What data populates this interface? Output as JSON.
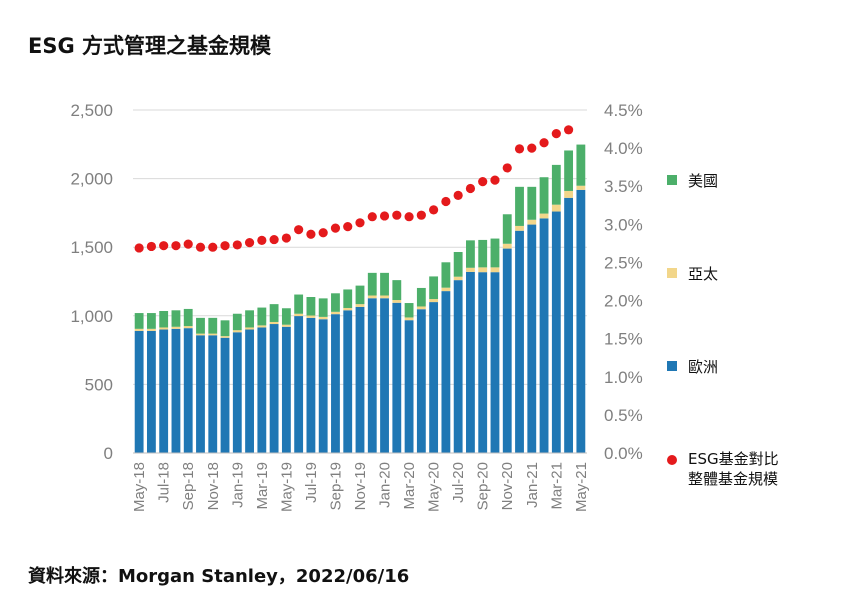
{
  "title": "ESG 方式管理之基金規模",
  "source": "資料來源：Morgan Stanley，2022/06/16",
  "chart_data": {
    "type": "bar",
    "stacked": true,
    "y_left": {
      "min": 0,
      "max": 2500,
      "ticks": [
        "0",
        "500",
        "1,000",
        "1,500",
        "2,000",
        "2,500"
      ]
    },
    "y_right": {
      "min": 0,
      "max": 4.5,
      "ticks": [
        "0.0%",
        "0.5%",
        "1.0%",
        "1.5%",
        "2.0%",
        "2.5%",
        "3.0%",
        "3.5%",
        "4.0%",
        "4.5%"
      ]
    },
    "grid": true,
    "legend_position": "right",
    "categories": [
      "May-18",
      "Jun-18",
      "Jul-18",
      "Aug-18",
      "Sep-18",
      "Oct-18",
      "Nov-18",
      "Dec-18",
      "Jan-19",
      "Feb-19",
      "Mar-19",
      "Apr-19",
      "May-19",
      "Jun-19",
      "Jul-19",
      "Aug-19",
      "Sep-19",
      "Oct-19",
      "Nov-19",
      "Dec-19",
      "Jan-20",
      "Feb-20",
      "Mar-20",
      "Apr-20",
      "May-20",
      "Jun-20",
      "Jul-20",
      "Aug-20",
      "Sep-20",
      "Oct-20",
      "Nov-20",
      "Dec-20",
      "Jan-21",
      "Feb-21",
      "Mar-21",
      "Apr-21",
      "May-21"
    ],
    "x_tick_labels": [
      "May-18",
      "Jul-18",
      "Sep-18",
      "Nov-18",
      "Jan-19",
      "Mar-19",
      "May-19",
      "Jul-19",
      "Sep-19",
      "Nov-19",
      "Jan-20",
      "Mar-20",
      "May-20",
      "Jul-20",
      "Sep-20",
      "Nov-20",
      "Jan-21",
      "Mar-21",
      "May-21"
    ],
    "series": [
      {
        "name": "歐洲",
        "color": "#1f77b4",
        "axis": "left",
        "values": [
          890,
          890,
          900,
          905,
          910,
          858,
          858,
          840,
          880,
          900,
          915,
          940,
          920,
          998,
          985,
          975,
          1012,
          1040,
          1065,
          1128,
          1128,
          1095,
          968,
          1048,
          1100,
          1180,
          1260,
          1320,
          1318,
          1318,
          1490,
          1620,
          1665,
          1710,
          1760,
          1860,
          1918
        ]
      },
      {
        "name": "亞太",
        "color": "#f2d68a",
        "axis": "left",
        "values": [
          15,
          15,
          15,
          15,
          15,
          12,
          12,
          12,
          15,
          15,
          15,
          15,
          15,
          17,
          17,
          17,
          17,
          17,
          20,
          20,
          20,
          20,
          20,
          20,
          22,
          25,
          25,
          30,
          35,
          35,
          35,
          35,
          35,
          35,
          50,
          50,
          30
        ]
      },
      {
        "name": "美國",
        "color": "#4caf6a",
        "axis": "left",
        "values": [
          115,
          115,
          120,
          120,
          125,
          115,
          115,
          115,
          120,
          125,
          130,
          130,
          120,
          140,
          135,
          135,
          135,
          135,
          135,
          165,
          165,
          145,
          105,
          135,
          165,
          185,
          180,
          200,
          200,
          210,
          215,
          285,
          240,
          265,
          290,
          295,
          300
        ]
      },
      {
        "name": "ESG基金對比整體基金規模",
        "color": "#e41a1c",
        "axis": "right",
        "type": "scatter",
        "values": [
          2.69,
          2.71,
          2.72,
          2.72,
          2.74,
          2.7,
          2.7,
          2.72,
          2.73,
          2.76,
          2.79,
          2.8,
          2.82,
          2.93,
          2.87,
          2.89,
          2.95,
          2.97,
          3.02,
          3.1,
          3.11,
          3.12,
          3.1,
          3.12,
          3.19,
          3.3,
          3.38,
          3.47,
          3.56,
          3.58,
          3.74,
          3.99,
          4.0,
          4.07,
          4.19,
          4.24,
          null
        ]
      }
    ]
  },
  "legend": {
    "items": [
      {
        "label": "美國",
        "color": "#4caf6a"
      },
      {
        "label": "亞太",
        "color": "#f2d68a"
      },
      {
        "label": "歐洲",
        "color": "#1f77b4"
      }
    ],
    "ratio_line1": "ESG基金對比",
    "ratio_line2": "整體基金規模",
    "ratio_color": "#e41a1c"
  }
}
